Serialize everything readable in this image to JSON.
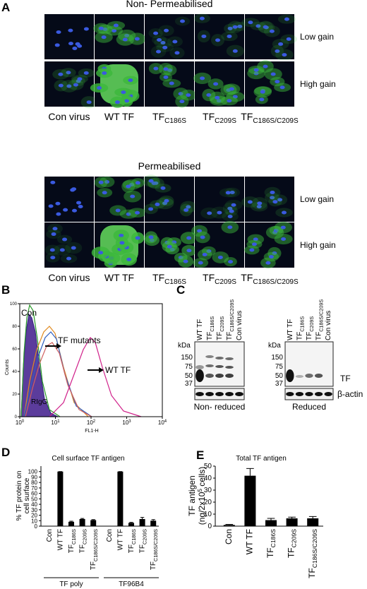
{
  "panel_a": {
    "label": "A",
    "sections": [
      {
        "title": "Non- Permeabilised",
        "rows": [
          "Low gain",
          "High gain"
        ]
      },
      {
        "title": "Permeabilised",
        "rows": [
          "Low gain",
          "High gain"
        ]
      }
    ],
    "columns": [
      {
        "text": "Con virus"
      },
      {
        "text": "WT TF"
      },
      {
        "text": "TF",
        "sub": "C186S"
      },
      {
        "text": "TF",
        "sub": "C209S"
      },
      {
        "text": "TF",
        "sub": "C186S/C209S"
      }
    ]
  },
  "panel_b": {
    "label": "B",
    "ylabel": "Counts",
    "xlabel": "FL1-H",
    "annotations": [
      "Con",
      "TF mutants",
      "WT TF",
      "RIgG"
    ],
    "log_x": true,
    "xlim": [
      1,
      10000
    ],
    "xticks": [
      {
        "value": 1,
        "label": "10",
        "exp": "0"
      },
      {
        "value": 10,
        "label": "10",
        "exp": "1"
      },
      {
        "value": 100,
        "label": "10",
        "exp": "2"
      },
      {
        "value": 1000,
        "label": "10",
        "exp": "3"
      },
      {
        "value": 10000,
        "label": "10",
        "exp": "4"
      }
    ],
    "ylim": [
      0,
      100
    ],
    "yticks": [
      0,
      20,
      40,
      60,
      80,
      100
    ]
  },
  "panel_c": {
    "label": "C",
    "unit": "kDa",
    "markers": [
      150,
      75,
      50,
      37
    ],
    "lanes": [
      {
        "text": "WT TF"
      },
      {
        "text": "TF",
        "sub": "C186S"
      },
      {
        "text": "TF",
        "sub": "C209S"
      },
      {
        "text": "TF",
        "sub": "C186S/C209S"
      },
      {
        "text": "Con virus"
      }
    ],
    "band_labels": [
      "TF",
      "β-actin"
    ],
    "blots": [
      "Non- reduced",
      "Reduced"
    ]
  },
  "chart_data": [
    {
      "type": "bar",
      "label": "D",
      "title": "Cell surface TF antigen",
      "ylabel": [
        "% TF protein on",
        "cell surface"
      ],
      "categories": [
        {
          "text": "Con"
        },
        {
          "text": "WT TF"
        },
        {
          "text": "TF",
          "sub": "C186S"
        },
        {
          "text": "TF",
          "sub": "C209S"
        },
        {
          "text": "TF",
          "sub": "C186S/C209S"
        }
      ],
      "groups": [
        {
          "name": "TF poly",
          "values": [
            0,
            100,
            8,
            13,
            11
          ],
          "errors": [
            0,
            0,
            1,
            1,
            1
          ]
        },
        {
          "name": "TF96B4",
          "values": [
            0,
            100,
            6,
            13,
            10
          ],
          "errors": [
            0,
            0,
            1,
            3,
            2
          ]
        }
      ],
      "color": "#000000",
      "ylim": [
        0,
        110
      ],
      "yticks": [
        0,
        10,
        20,
        30,
        40,
        50,
        60,
        70,
        80,
        90,
        100
      ]
    },
    {
      "type": "bar",
      "label": "E",
      "title": "Total TF antigen",
      "ylabel": {
        "line1": "TF antigen",
        "line2": "(ng/2x10",
        "sup": "5",
        "tail": " cells)"
      },
      "categories": [
        {
          "text": "Con"
        },
        {
          "text": "WT TF"
        },
        {
          "text": "TF",
          "sub": "C186S"
        },
        {
          "text": "TF",
          "sub": "C209S"
        },
        {
          "text": "TF",
          "sub": "C186S/C209S"
        }
      ],
      "values": [
        1,
        42,
        5,
        6.5,
        6.5
      ],
      "errors": [
        0.5,
        6,
        1.5,
        1,
        1.5
      ],
      "color": "#000000",
      "ylim": [
        0,
        50
      ],
      "yticks": [
        0,
        10,
        20,
        30,
        40,
        50
      ]
    }
  ]
}
